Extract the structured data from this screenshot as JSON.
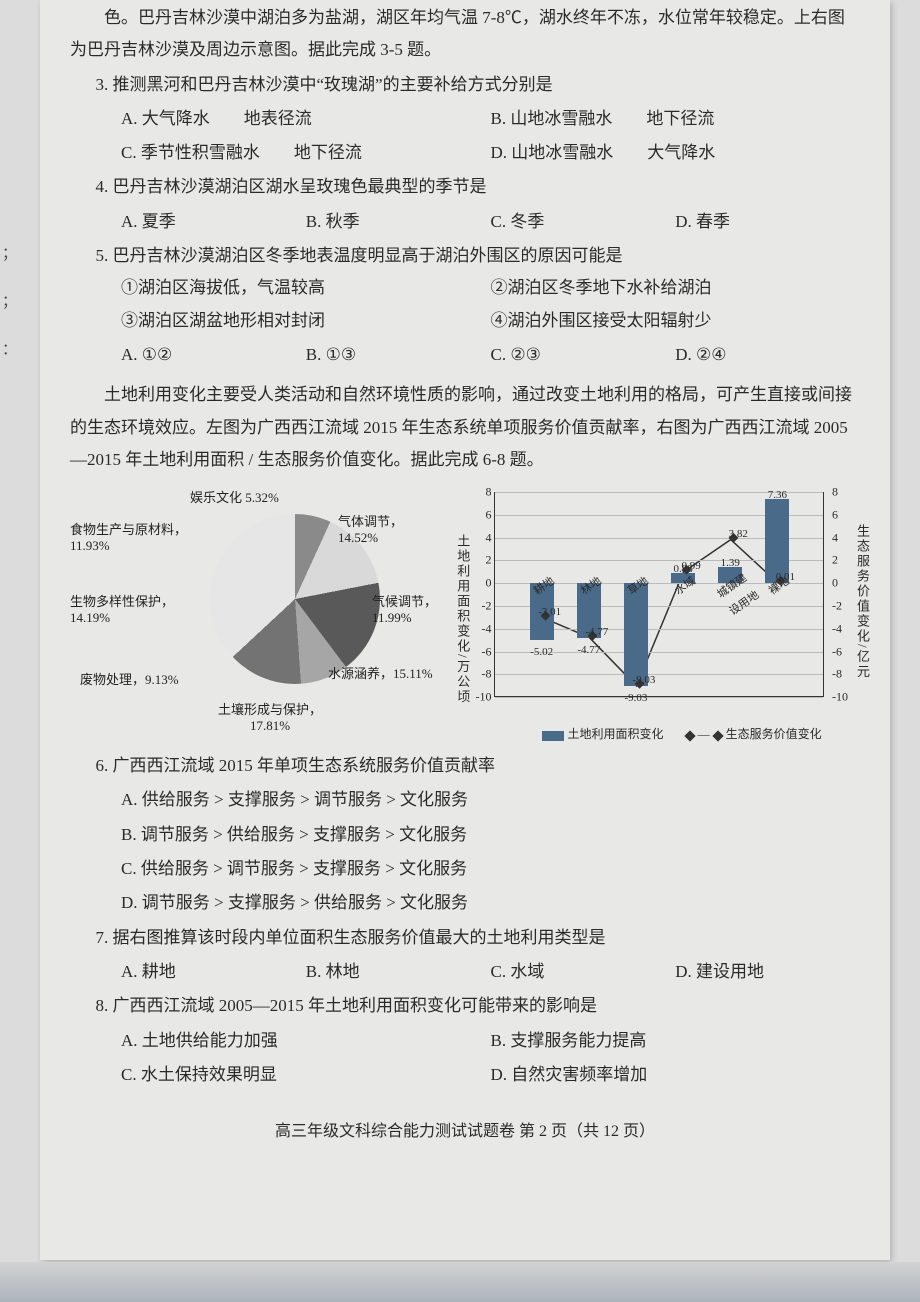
{
  "intro_top": "色。巴丹吉林沙漠中湖泊多为盐湖，湖区年均气温 7-8℃，湖水终年不冻，水位常年较稳定。上右图为巴丹吉林沙漠及周边示意图。据此完成 3-5 题。",
  "q3": {
    "stem": "3. 推测黑河和巴丹吉林沙漠中“玫瑰湖”的主要补给方式分别是",
    "a": "A. 大气降水　　地表径流",
    "b": "B. 山地冰雪融水　　地下径流",
    "c": "C. 季节性积雪融水　　地下径流",
    "d": "D. 山地冰雪融水　　大气降水"
  },
  "q4": {
    "stem": "4. 巴丹吉林沙漠湖泊区湖水呈玫瑰色最典型的季节是",
    "a": "A. 夏季",
    "b": "B. 秋季",
    "c": "C. 冬季",
    "d": "D. 春季"
  },
  "q5": {
    "stem": "5. 巴丹吉林沙漠湖泊区冬季地表温度明显高于湖泊外围区的原因可能是",
    "s1": "①湖泊区海拔低，气温较高",
    "s2": "②湖泊区冬季地下水补给湖泊",
    "s3": "③湖泊区湖盆地形相对封闭",
    "s4": "④湖泊外围区接受太阳辐射少",
    "a": "A. ①②",
    "b": "B. ①③",
    "c": "C. ②③",
    "d": "D. ②④"
  },
  "intro_mid": "土地利用变化主要受人类活动和自然环境性质的影响，通过改变土地利用的格局，可产生直接或间接的生态环境效应。左图为广西西江流域 2015 年生态系统单项服务价值贡献率，右图为广西西江流域 2005—2015 年土地利用面积 / 生态服务价值变化。据此完成 6-8 题。",
  "pie": {
    "labels": {
      "ent": "娱乐文化 5.32%",
      "gas": "气体调节，14.52%",
      "climate": "气候调节，11.99%",
      "water": "水源涵养，15.11%",
      "soil": "土壤形成与保护，17.81%",
      "waste": "废物处理，9.13%",
      "bio": "生物多样性保护，14.19%",
      "food": "食物生产与原材料，11.93%"
    },
    "slices": [
      {
        "label": "娱乐文化",
        "value": 5.32,
        "color": "#f2f2f2"
      },
      {
        "label": "气体调节",
        "value": 14.52,
        "color": "#bfbfbf"
      },
      {
        "label": "气候调节",
        "value": 11.99,
        "color": "#8a8a8a"
      },
      {
        "label": "水源涵养",
        "value": 15.11,
        "color": "#d9d9d9"
      },
      {
        "label": "土壤形成与保护",
        "value": 17.81,
        "color": "#595959"
      },
      {
        "label": "废物处理",
        "value": 9.13,
        "color": "#a6a6a6"
      },
      {
        "label": "生物多样性保护",
        "value": 14.19,
        "color": "#737373"
      },
      {
        "label": "食物生产与原材料",
        "value": 11.93,
        "color": "#e6e6e6"
      }
    ]
  },
  "barline": {
    "ymin": -10,
    "ymax": 8,
    "step": 2,
    "ylabel_left": "土地利用面积变化/万公顷",
    "ylabel_right": "生态服务价值变化/亿元",
    "categories": [
      "耕地",
      "林地",
      "草地",
      "水域",
      "城镇建设用地",
      "裸地"
    ],
    "bars": [
      -5.02,
      -4.77,
      -9.03,
      0.88,
      1.39,
      7.36
    ],
    "line": [
      -3.01,
      -4.77,
      -9.03,
      0.99,
      3.82,
      0.01
    ],
    "bar_color": "#4a6a8a",
    "line_color": "#333333",
    "legend_bar": "土地利用面积变化",
    "legend_line": "生态服务价值变化"
  },
  "q6": {
    "stem": "6. 广西西江流域 2015 年单项生态系统服务价值贡献率",
    "a": "A. 供给服务 > 支撑服务 > 调节服务 > 文化服务",
    "b": "B. 调节服务 > 供给服务 > 支撑服务 > 文化服务",
    "c": "C. 供给服务 > 调节服务 > 支撑服务 > 文化服务",
    "d": "D. 调节服务 > 支撑服务 > 供给服务 > 文化服务"
  },
  "q7": {
    "stem": "7. 据右图推算该时段内单位面积生态服务价值最大的土地利用类型是",
    "a": "A. 耕地",
    "b": "B. 林地",
    "c": "C. 水域",
    "d": "D. 建设用地"
  },
  "q8": {
    "stem": "8. 广西西江流域 2005—2015 年土地利用面积变化可能带来的影响是",
    "a": "A. 土地供给能力加强",
    "b": "B. 支撑服务能力提高",
    "c": "C. 水土保持效果明显",
    "d": "D. 自然灾害频率增加"
  },
  "footer": "高三年级文科综合能力测试试题卷 第 2 页（共 12 页）"
}
